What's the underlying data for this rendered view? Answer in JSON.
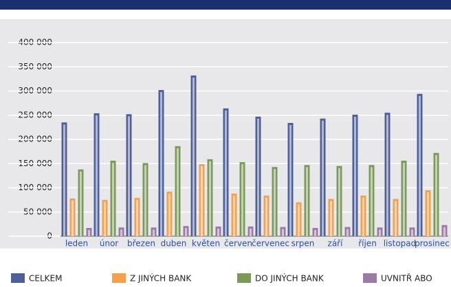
{
  "chart_data": {
    "type": "bar",
    "categories": [
      "leden",
      "únor",
      "březen",
      "duben",
      "květen",
      "červen",
      "červenec",
      "srpen",
      "září",
      "říjen",
      "listopad",
      "prosinec"
    ],
    "series": [
      {
        "name": "CELKEM",
        "color": "#4e5f99",
        "values": [
          235000,
          254000,
          252000,
          302000,
          332000,
          264000,
          247000,
          234000,
          243000,
          251000,
          255000,
          294000
        ]
      },
      {
        "name": "Z JINÝCH BANK",
        "color": "#f4a04c",
        "values": [
          78000,
          75000,
          79000,
          92000,
          149000,
          88000,
          84000,
          70000,
          77000,
          84000,
          77000,
          95000
        ]
      },
      {
        "name": "DO JINÝCH BANK",
        "color": "#7b9a5a",
        "values": [
          138000,
          156000,
          151000,
          186000,
          159000,
          153000,
          143000,
          147000,
          145000,
          147000,
          156000,
          172000
        ]
      },
      {
        "name": "UVNITŘ ABO",
        "color": "#9b7ba6",
        "values": [
          17000,
          18000,
          18000,
          21000,
          20000,
          20000,
          19000,
          17000,
          19000,
          18000,
          18000,
          23000
        ]
      }
    ],
    "ylim": [
      0,
      400000
    ],
    "yticks": [
      {
        "value": 0,
        "label": "0"
      },
      {
        "value": 50000,
        "label": "50 000"
      },
      {
        "value": 100000,
        "label": "100 000"
      },
      {
        "value": 150000,
        "label": "150 000"
      },
      {
        "value": 200000,
        "label": "200 000"
      },
      {
        "value": 250000,
        "label": "250 000"
      },
      {
        "value": 300000,
        "label": "300 000"
      },
      {
        "value": 350000,
        "label": "350 000"
      },
      {
        "value": 400000,
        "label": "400 000"
      }
    ],
    "grid": true
  }
}
